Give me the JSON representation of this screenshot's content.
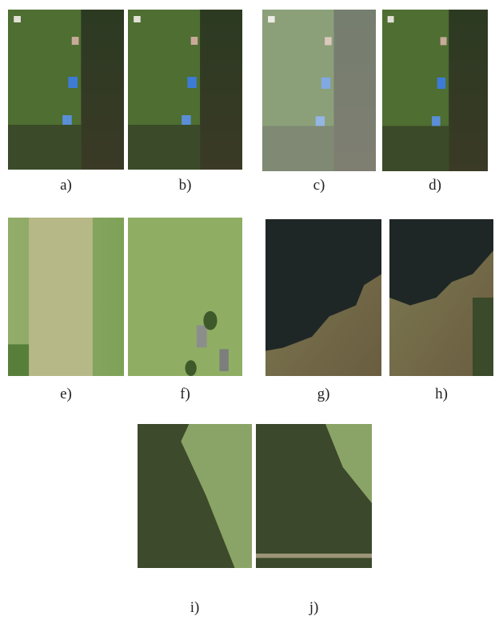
{
  "panels": [
    {
      "label": "a)"
    },
    {
      "label": "b)"
    },
    {
      "label": "c)"
    },
    {
      "label": "d)"
    },
    {
      "label": "e)"
    },
    {
      "label": "f)"
    },
    {
      "label": "g)"
    },
    {
      "label": "h)"
    },
    {
      "label": "i)"
    },
    {
      "label": "j)"
    }
  ]
}
